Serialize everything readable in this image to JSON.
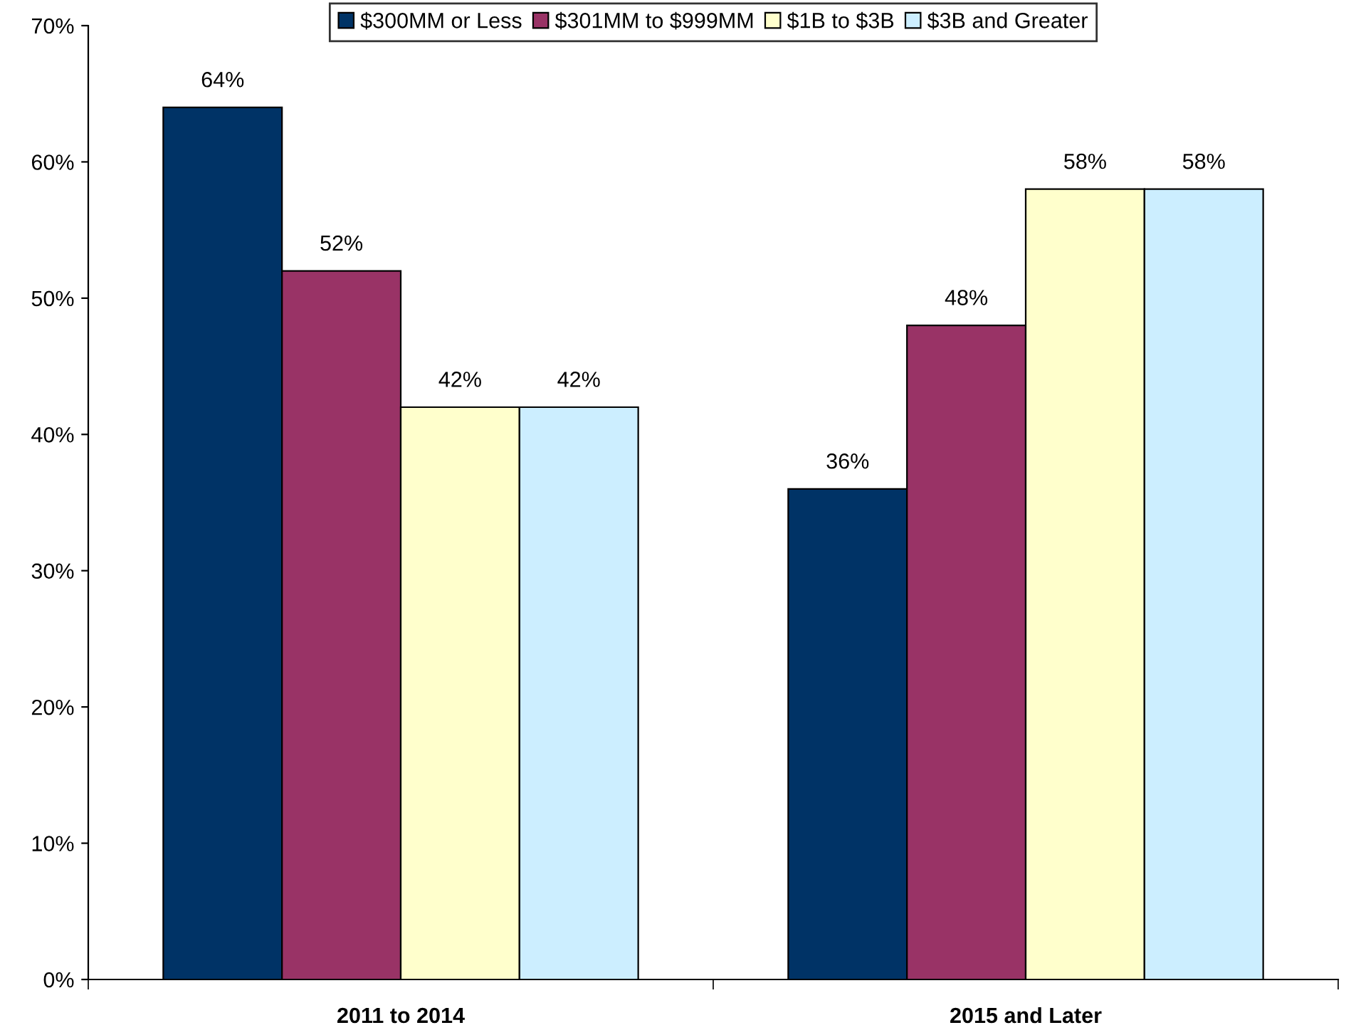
{
  "chart_data": {
    "type": "bar",
    "categories": [
      "2011 to 2014",
      "2015 and Later"
    ],
    "series": [
      {
        "name": "$300MM or Less",
        "color": "#003366",
        "values": [
          64,
          36
        ],
        "value_labels": [
          "64%",
          "36%"
        ]
      },
      {
        "name": "$301MM to $999MM",
        "color": "#993366",
        "values": [
          52,
          48
        ],
        "value_labels": [
          "52%",
          "48%"
        ]
      },
      {
        "name": "$1B to $3B",
        "color": "#ffffcc",
        "values": [
          42,
          58
        ],
        "value_labels": [
          "42%",
          "58%"
        ]
      },
      {
        "name": "$3B and Greater",
        "color": "#cceeff",
        "values": [
          42,
          58
        ],
        "value_labels": [
          "42%",
          "58%"
        ]
      }
    ],
    "ylim": [
      0,
      70
    ],
    "yticks": [
      {
        "value": 0,
        "label": "0%"
      },
      {
        "value": 10,
        "label": "10%"
      },
      {
        "value": 20,
        "label": "20%"
      },
      {
        "value": 30,
        "label": "30%"
      },
      {
        "value": 40,
        "label": "40%"
      },
      {
        "value": 50,
        "label": "50%"
      },
      {
        "value": 60,
        "label": "60%"
      },
      {
        "value": 70,
        "label": "70%"
      }
    ],
    "grid": false,
    "legend": "top"
  }
}
